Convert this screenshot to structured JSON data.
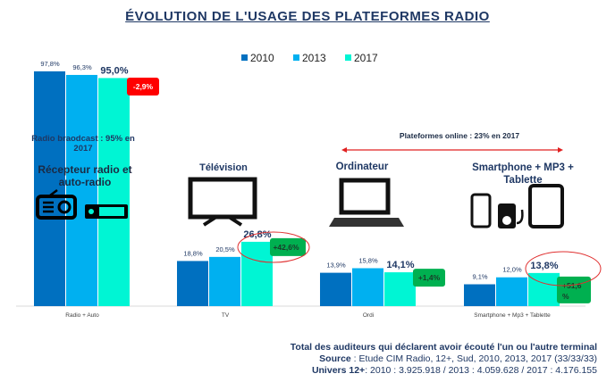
{
  "chart_data": {
    "type": "bar",
    "title": "ÉVOLUTION DE L'USAGE DES PLATEFORMES RADIO",
    "categories": [
      "Radio + Auto",
      "TV",
      "Ordi",
      "Smartphone + Mp3 + Tablette"
    ],
    "series": [
      {
        "name": "2010",
        "color": "#0070c0",
        "values": [
          97.8,
          18.8,
          13.9,
          9.1
        ],
        "labels": [
          "97,8%",
          "18,8%",
          "13,9%",
          "9,1%"
        ]
      },
      {
        "name": "2013",
        "color": "#00b0f0",
        "values": [
          96.3,
          20.5,
          15.8,
          12.0
        ],
        "labels": [
          "96,3%",
          "20,5%",
          "15,8%",
          "12,0%"
        ]
      },
      {
        "name": "2017",
        "color": "#00f5d4",
        "values": [
          95.0,
          26.8,
          14.1,
          13.8
        ],
        "labels": [
          "95,0%",
          "26,8%",
          "14,1%",
          "13,8%"
        ]
      }
    ],
    "changes": [
      {
        "text": "-2,9%",
        "color": "#ff0000"
      },
      {
        "text": "+42,6%",
        "color": "#00b050"
      },
      {
        "text": "+1,4%",
        "color": "#00b050"
      },
      {
        "text": "+51,6 %",
        "color": "#00b050"
      }
    ],
    "ylim": [
      0,
      100
    ],
    "grid": false,
    "legend": "top-center"
  },
  "annotations": {
    "radio_broadcast": "Radio braodcast : 95% en 2017",
    "radio_device": "Récepteur radio et auto-radio",
    "tv": "Télévision",
    "online": "Plateformes online : 23% en 2017",
    "ordi": "Ordinateur",
    "mobile": "Smartphone + MP3 + Tablette"
  },
  "footer": {
    "line1": "Total des auditeurs qui déclarent avoir écouté l'un ou l'autre terminal",
    "source_label": "Source",
    "source_text": " : Etude CIM Radio, 12+, Sud, 2010, 2013, 2017 (33/33/33)",
    "univers_label": "Univers 12+",
    "univers_text": ":  2010 : 3.925.918  /  2013 : 4.059.628 / 2017 : 4.176.155"
  }
}
